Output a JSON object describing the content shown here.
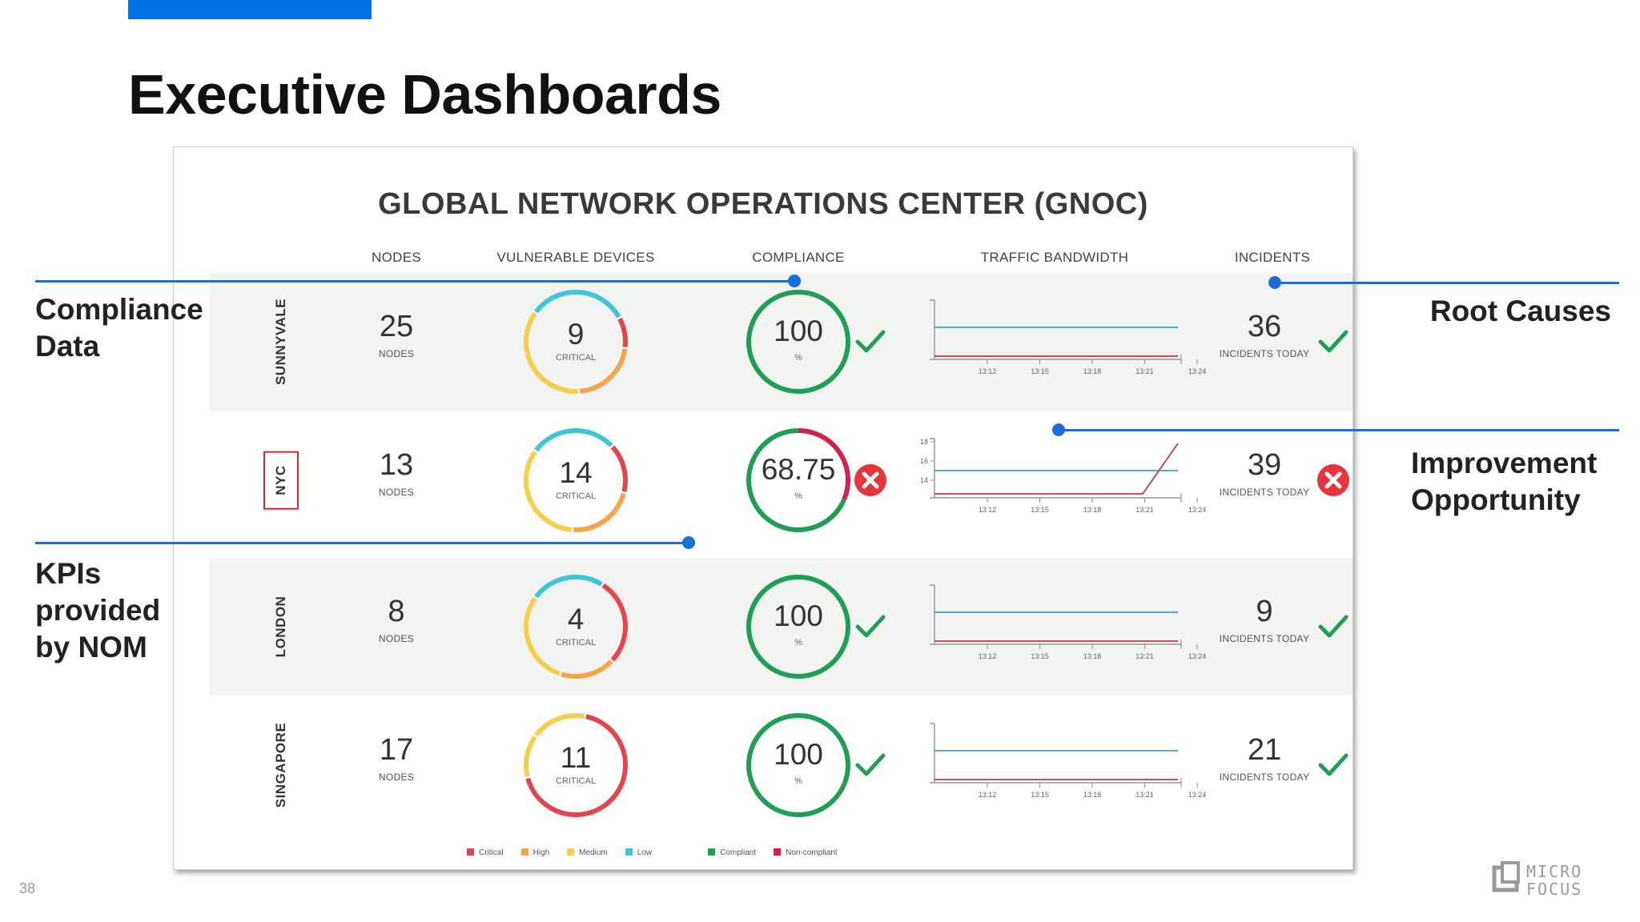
{
  "slide": {
    "title": "Executive Dashboards",
    "page_number": "38",
    "logo_text": [
      "MICRO",
      "FOCUS"
    ]
  },
  "dashboard": {
    "title": "GLOBAL NETWORK OPERATIONS CENTER (GNOC)",
    "columns": [
      "NODES",
      "VULNERABLE DEVICES",
      "COMPLIANCE",
      "TRAFFIC BANDWIDTH",
      "INCIDENTS"
    ],
    "rows": [
      {
        "city": "SUNNYVALE",
        "nodes": "25",
        "nodes_label": "NODES",
        "vulnerable": "9",
        "vulnerable_label": "CRITICAL",
        "compliance": "100",
        "compliance_unit": "%",
        "compliance_status": "ok",
        "incidents": "36",
        "incidents_label": "INCIDENTS TODAY",
        "incidents_status": "ok"
      },
      {
        "city": "NYC",
        "nodes": "13",
        "nodes_label": "NODES",
        "vulnerable": "14",
        "vulnerable_label": "CRITICAL",
        "compliance": "68.75",
        "compliance_unit": "%",
        "compliance_status": "fail",
        "incidents": "39",
        "incidents_label": "INCIDENTS TODAY",
        "incidents_status": "fail"
      },
      {
        "city": "LONDON",
        "nodes": "8",
        "nodes_label": "NODES",
        "vulnerable": "4",
        "vulnerable_label": "CRITICAL",
        "compliance": "100",
        "compliance_unit": "%",
        "compliance_status": "ok",
        "incidents": "9",
        "incidents_label": "INCIDENTS TODAY",
        "incidents_status": "ok"
      },
      {
        "city": "SINGAPORE",
        "nodes": "17",
        "nodes_label": "NODES",
        "vulnerable": "11",
        "vulnerable_label": "CRITICAL",
        "compliance": "100",
        "compliance_unit": "%",
        "compliance_status": "ok",
        "incidents": "21",
        "incidents_label": "INCIDENTS TODAY",
        "incidents_status": "ok"
      }
    ],
    "traffic_time_ticks": [
      "13:12",
      "13:15",
      "13:18",
      "13:21",
      "13:24"
    ],
    "nyc_y_ticks": [
      "18",
      "16",
      "14"
    ],
    "legend": [
      {
        "label": "Critical",
        "color": "#e8434a"
      },
      {
        "label": "High",
        "color": "#f5a54a"
      },
      {
        "label": "Medium",
        "color": "#f5cf4a"
      },
      {
        "label": "Low",
        "color": "#3fc6d6"
      },
      {
        "label": "Compliant",
        "color": "#1f9e55"
      },
      {
        "label": "Non-compliant",
        "color": "#d81e4a"
      }
    ]
  },
  "callouts": {
    "compliance": [
      "Compliance",
      "Data"
    ],
    "kpis": [
      "KPIs",
      "provided",
      "by NOM"
    ],
    "root_causes": "Root Causes",
    "improvement": [
      "Improvement",
      "Opportunity"
    ]
  },
  "colors": {
    "accent": "#0073e7",
    "callout": "#1a6fd6",
    "ok": "#1f9e55",
    "fail": "#e8343c",
    "traffic": "#3aa0d8",
    "traffic_alt": "#c8344a"
  }
}
